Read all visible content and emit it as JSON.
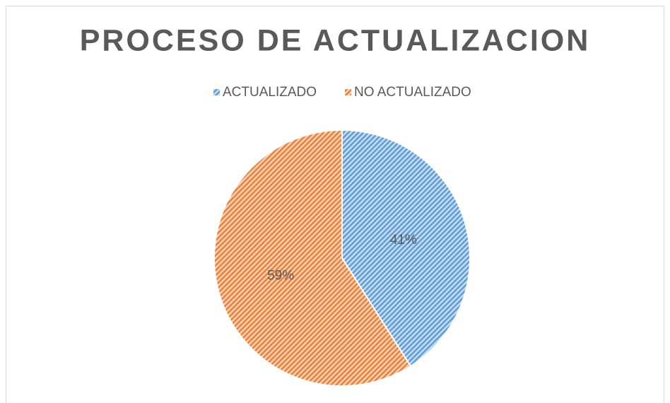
{
  "chart_data": {
    "type": "pie",
    "title": "PROCESO DE ACTUALIZACION",
    "categories": [
      "ACTUALIZADO",
      "NO ACTUALIZADO"
    ],
    "values": [
      41,
      59
    ],
    "value_labels": [
      "41%",
      "59%"
    ],
    "colors": [
      "#5b9bd5",
      "#ed7d31"
    ],
    "legend": "top"
  }
}
